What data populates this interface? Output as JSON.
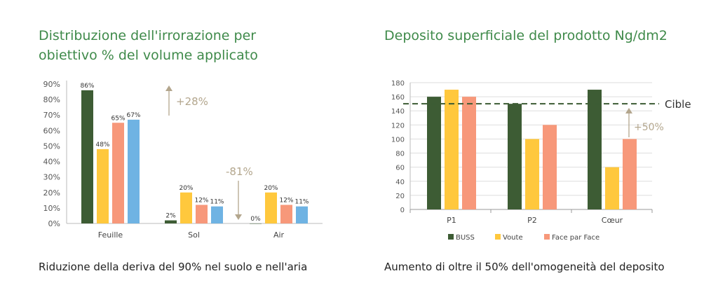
{
  "left": {
    "title_line1": "Distribuzione dell'irrorazione per",
    "title_line2": "obiettivo % del volume applicato",
    "caption": "Riduzione della deriva del 90% nel suolo e nell'aria",
    "chart_data": {
      "type": "bar",
      "categories": [
        "Feuille",
        "Sol",
        "Air"
      ],
      "series": [
        {
          "values": [
            86,
            2,
            0
          ],
          "labels": [
            "86%",
            "2%",
            "0%"
          ],
          "color": "#3d5c34"
        },
        {
          "values": [
            48,
            20,
            20
          ],
          "labels": [
            "48%",
            "20%",
            "20%"
          ],
          "color": "#ffc83d"
        },
        {
          "values": [
            65,
            12,
            12
          ],
          "labels": [
            "65%",
            "12%",
            "12%"
          ],
          "color": "#f7987a"
        },
        {
          "values": [
            67,
            11,
            11
          ],
          "labels": [
            "67%",
            "11%",
            "11%"
          ],
          "color": "#6fb3e3"
        }
      ],
      "y_ticks": [
        "0%",
        "10%",
        "20%",
        "30%",
        "40%",
        "50%",
        "60%",
        "70%",
        "80%",
        "90%"
      ],
      "ylim": [
        0,
        90
      ],
      "annotations": [
        {
          "text": "+28%",
          "color": "#b3a68d"
        },
        {
          "text": "-81%",
          "color": "#b3a68d"
        }
      ],
      "grid": false
    }
  },
  "right": {
    "title": "Deposito superficiale del prodotto Ng/dm2",
    "caption": "Aumento di oltre il 50% dell'omogeneità del deposito",
    "chart_data": {
      "type": "bar",
      "categories": [
        "P1",
        "P2",
        "Cœur"
      ],
      "series": [
        {
          "name": "BUSS",
          "values": [
            160,
            150,
            170
          ],
          "color": "#3d5c34"
        },
        {
          "name": "Voute",
          "values": [
            170,
            100,
            60
          ],
          "color": "#ffc83d"
        },
        {
          "name": "Face par Face",
          "values": [
            160,
            120,
            100
          ],
          "color": "#f7987a"
        }
      ],
      "y_ticks": [
        "0",
        "20",
        "40",
        "60",
        "80",
        "100",
        "120",
        "140",
        "160",
        "180"
      ],
      "ylim": [
        0,
        180
      ],
      "reference_line": {
        "value": 150,
        "label": "Cible",
        "color": "#3d5c34"
      },
      "annotations": [
        {
          "text": "+50%",
          "color": "#b3a68d"
        }
      ],
      "grid": true,
      "legend_position": "bottom"
    }
  }
}
